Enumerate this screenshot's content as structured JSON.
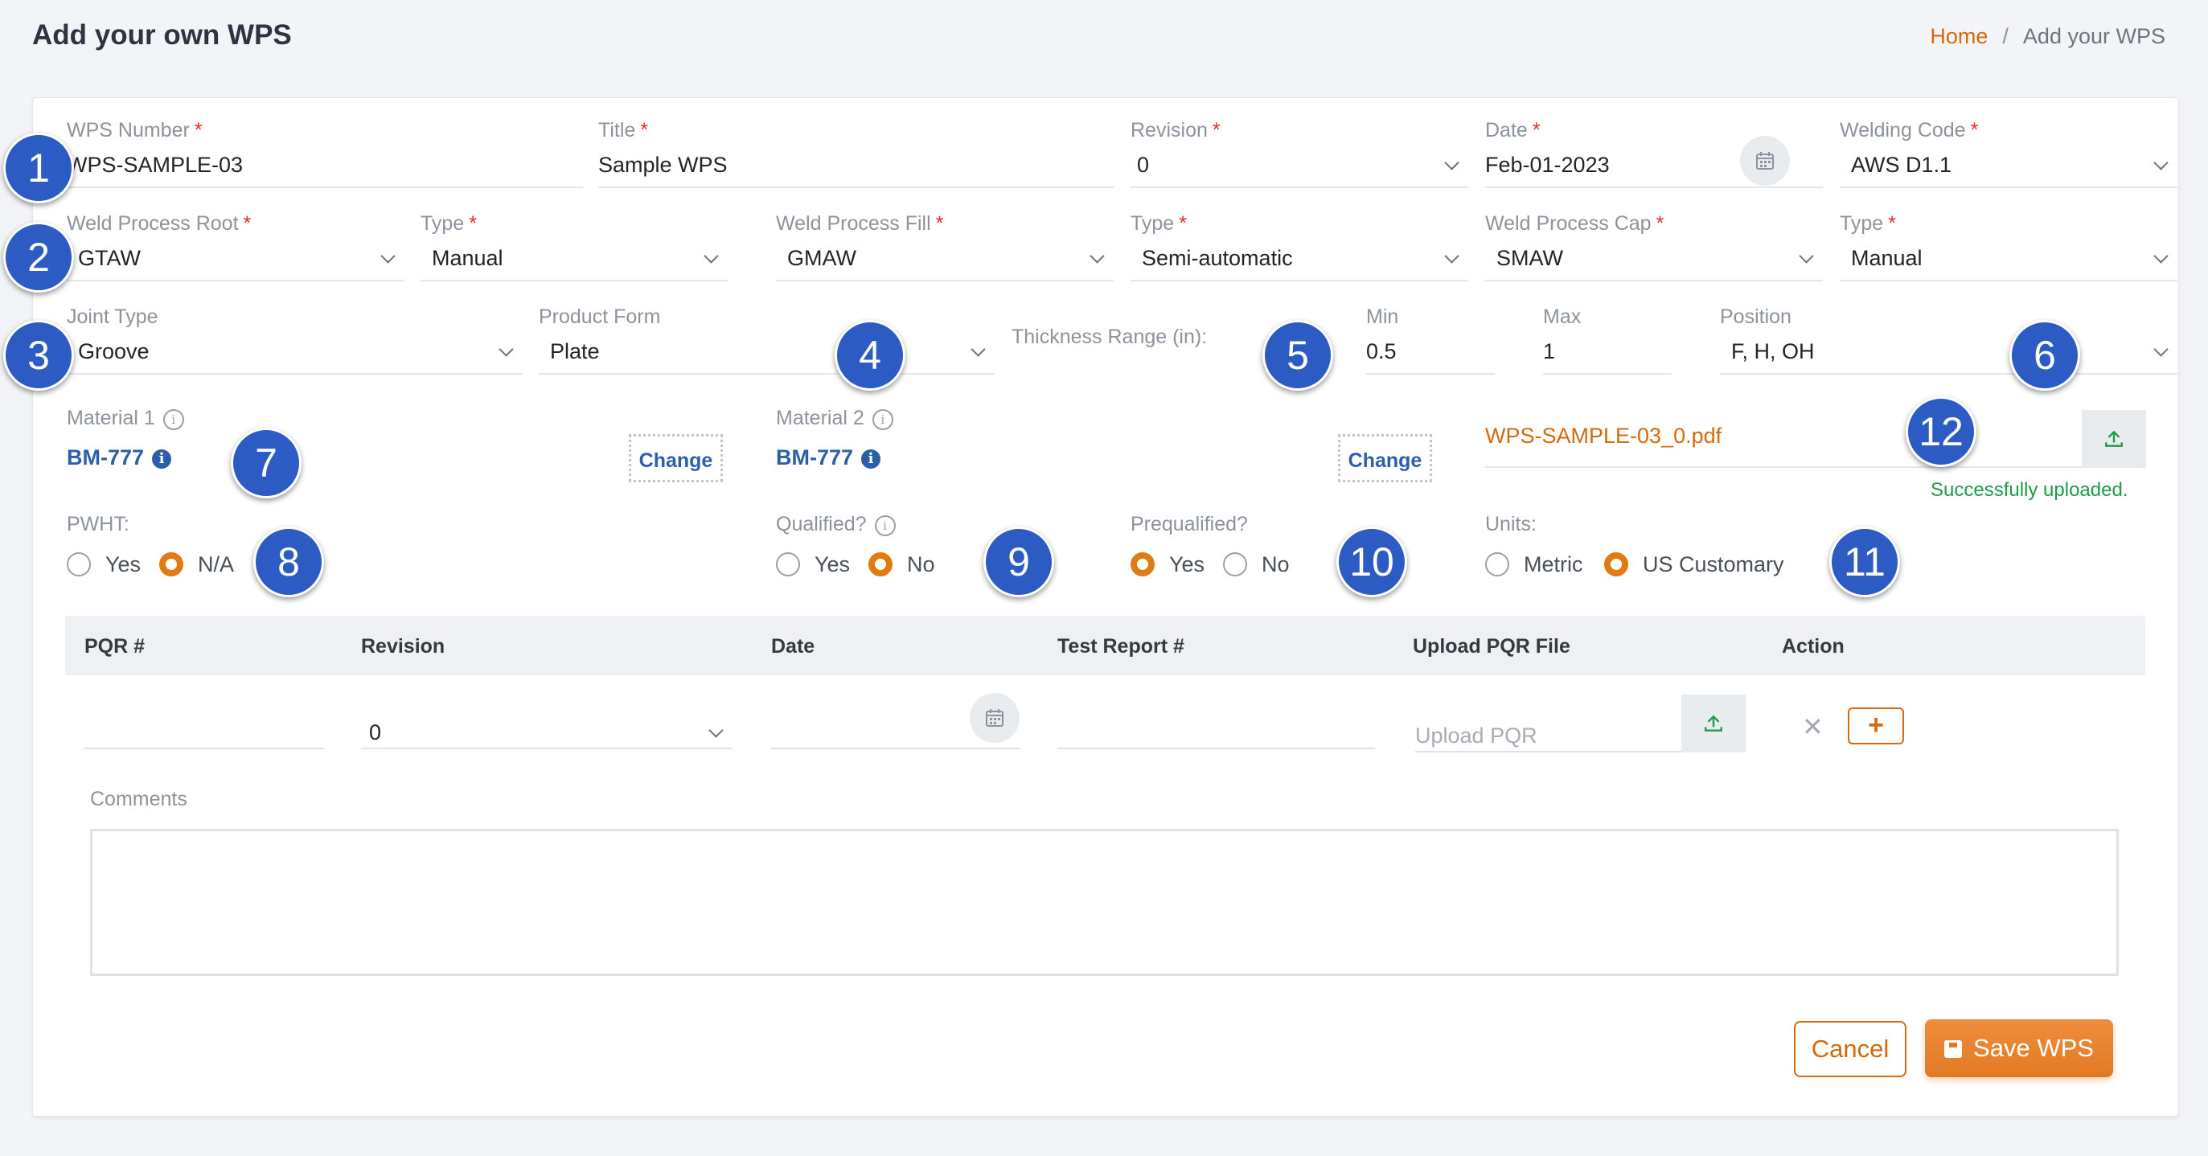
{
  "header": {
    "title": "Add your own WPS"
  },
  "breadcrumb": {
    "home": "Home",
    "separator": "/",
    "current": "Add your WPS"
  },
  "form": {
    "required_marker": "*",
    "wps_number": {
      "label": "WPS Number",
      "value": "WPS-SAMPLE-03"
    },
    "title": {
      "label": "Title",
      "value": "Sample WPS"
    },
    "revision": {
      "label": "Revision",
      "value": "0"
    },
    "date": {
      "label": "Date",
      "value": "Feb-01-2023"
    },
    "welding_code": {
      "label": "Welding Code",
      "value": "AWS D1.1"
    },
    "weld_process_root": {
      "label": "Weld Process Root",
      "value": "GTAW"
    },
    "root_type": {
      "label": "Type",
      "value": "Manual"
    },
    "weld_process_fill": {
      "label": "Weld Process Fill",
      "value": "GMAW"
    },
    "fill_type": {
      "label": "Type",
      "value": "Semi-automatic"
    },
    "weld_process_cap": {
      "label": "Weld Process Cap",
      "value": "SMAW"
    },
    "cap_type": {
      "label": "Type",
      "value": "Manual"
    },
    "joint_type": {
      "label": "Joint Type",
      "value": "Groove"
    },
    "product_form": {
      "label": "Product Form",
      "value": "Plate"
    },
    "thickness_range": {
      "label": "Thickness Range (in):"
    },
    "min": {
      "label": "Min",
      "value": "0.5"
    },
    "max": {
      "label": "Max",
      "value": "1"
    },
    "position": {
      "label": "Position",
      "value": "F, H, OH"
    },
    "material1": {
      "label": "Material 1",
      "value": "BM-777",
      "change_label": "Change"
    },
    "material2": {
      "label": "Material 2",
      "value": "BM-777",
      "change_label": "Change"
    },
    "file": {
      "name": "WPS-SAMPLE-03_0.pdf",
      "status": "Successfully uploaded.",
      "status_color": "#1e9b48"
    },
    "pwht": {
      "label": "PWHT:",
      "options": [
        "Yes",
        "N/A"
      ],
      "selected": "N/A"
    },
    "qualified": {
      "label": "Qualified?",
      "options": [
        "Yes",
        "No"
      ],
      "selected": "No"
    },
    "prequalified": {
      "label": "Prequalified?",
      "options": [
        "Yes",
        "No"
      ],
      "selected": "Yes"
    },
    "units": {
      "label": "Units:",
      "options": [
        "Metric",
        "US Customary"
      ],
      "selected": "US Customary"
    }
  },
  "pqr_table": {
    "columns": [
      "PQR #",
      "Revision",
      "Date",
      "Test Report #",
      "Upload PQR File",
      "Action"
    ],
    "row": {
      "pqr_number": "",
      "revision": "0",
      "date": "",
      "test_report": "",
      "upload_placeholder": "Upload PQR"
    }
  },
  "comments": {
    "label": "Comments",
    "value": ""
  },
  "actions": {
    "cancel": "Cancel",
    "save": "Save WPS"
  },
  "annotations": [
    "1",
    "2",
    "3",
    "4",
    "5",
    "6",
    "7",
    "8",
    "9",
    "10",
    "11",
    "12"
  ],
  "colors": {
    "accent": "#e07a12",
    "link": "#2b5faa",
    "badge": "#2d5bc4"
  },
  "icons": [
    "calendar-icon",
    "upload-icon",
    "info-icon",
    "close-icon",
    "plus-icon",
    "save-icon",
    "chevron-down-icon"
  ]
}
